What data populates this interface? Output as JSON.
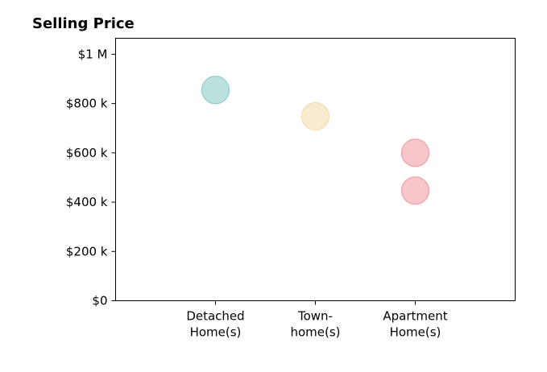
{
  "chart_data": {
    "type": "scatter",
    "title": "Selling Price",
    "xlabel": "",
    "ylabel": "",
    "grid": false,
    "categories": [
      [
        "Detached",
        "Home(s)"
      ],
      [
        "Town-",
        "home(s)"
      ],
      [
        "Apartment",
        "Home(s)"
      ]
    ],
    "xlim": [
      -1,
      3
    ],
    "ylim": [
      0,
      1065000
    ],
    "yticks": [
      {
        "value": 0,
        "label": "$0"
      },
      {
        "value": 200000,
        "label": "$200 k"
      },
      {
        "value": 400000,
        "label": "$400 k"
      },
      {
        "value": 600000,
        "label": "$600 k"
      },
      {
        "value": 800000,
        "label": "$800 k"
      },
      {
        "value": 1000000,
        "label": "$1 M"
      }
    ],
    "points": [
      {
        "category": 0,
        "y": 855000,
        "color": "#8ecfc9"
      },
      {
        "category": 1,
        "y": 748000,
        "color": "#f5deb0"
      },
      {
        "category": 2,
        "y": 600000,
        "color": "#f1a0a8"
      },
      {
        "category": 2,
        "y": 447000,
        "color": "#f1a0a8"
      }
    ]
  }
}
